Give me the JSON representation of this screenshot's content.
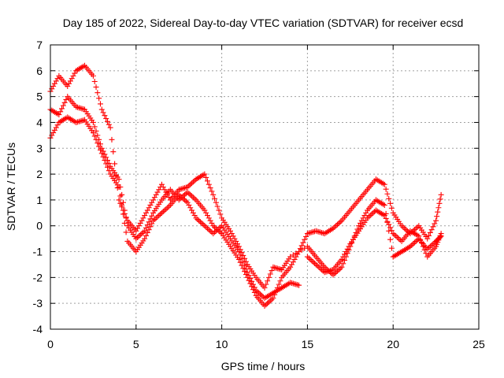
{
  "chart_data": {
    "type": "scatter",
    "title": "Day 185 of 2022, Sidereal Day-to-day VTEC variation (SDTVAR) for receiver ecsd",
    "xlabel": "GPS time / hours",
    "ylabel": "SDTVAR / TECUs",
    "xlim": [
      0,
      25
    ],
    "ylim": [
      -4,
      7
    ],
    "xticks": [
      0,
      5,
      10,
      15,
      20,
      25
    ],
    "yticks": [
      -4,
      -3,
      -2,
      -1,
      0,
      1,
      2,
      3,
      4,
      5,
      6,
      7
    ],
    "xtick_labels": [
      "0",
      "5",
      "10",
      "15",
      "20",
      "25"
    ],
    "ytick_labels": [
      "-4",
      "-3",
      "-2",
      "-1",
      "0",
      "1",
      "2",
      "3",
      "4",
      "5",
      "6",
      "7"
    ],
    "grid": true,
    "marker": "plus",
    "color": "#ff0000",
    "series": [
      {
        "points": [
          [
            0,
            3.4
          ],
          [
            0.5,
            4.0
          ],
          [
            1.0,
            4.2
          ],
          [
            1.5,
            4.0
          ],
          [
            2.0,
            4.1
          ],
          [
            2.5,
            3.6
          ],
          [
            3.0,
            2.8
          ],
          [
            3.5,
            2.0
          ],
          [
            4.0,
            1.5
          ],
          [
            4.5,
            -0.6
          ],
          [
            5.0,
            -1.0
          ],
          [
            5.5,
            -0.5
          ],
          [
            6.0,
            0.2
          ],
          [
            6.5,
            0.5
          ],
          [
            7.0,
            0.8
          ],
          [
            7.5,
            1.2
          ],
          [
            8.0,
            0.9
          ],
          [
            8.5,
            0.3
          ],
          [
            9.0,
            0.0
          ],
          [
            9.5,
            -0.3
          ],
          [
            10.0,
            0.0
          ],
          [
            10.5,
            -0.5
          ],
          [
            11.0,
            -1.0
          ],
          [
            11.5,
            -1.8
          ],
          [
            12.0,
            -2.5
          ],
          [
            12.5,
            -2.8
          ],
          [
            13.0,
            -2.6
          ],
          [
            13.5,
            -2.4
          ],
          [
            14.0,
            -2.2
          ],
          [
            14.5,
            -2.3
          ]
        ]
      },
      {
        "points": [
          [
            0,
            4.5
          ],
          [
            0.5,
            4.3
          ],
          [
            1.0,
            5.0
          ],
          [
            1.5,
            4.6
          ],
          [
            2.0,
            4.5
          ],
          [
            2.5,
            4.0
          ],
          [
            3.0,
            3.0
          ],
          [
            3.5,
            2.3
          ],
          [
            4.0,
            1.8
          ],
          [
            4.5,
            0.0
          ],
          [
            5.0,
            -0.5
          ],
          [
            5.5,
            -0.2
          ],
          [
            6.0,
            0.5
          ],
          [
            6.5,
            1.0
          ],
          [
            7.0,
            1.4
          ],
          [
            7.5,
            1.0
          ],
          [
            8.0,
            1.3
          ],
          [
            8.5,
            1.0
          ],
          [
            9.0,
            0.6
          ],
          [
            9.5,
            0.0
          ],
          [
            10.0,
            -0.3
          ],
          [
            10.5,
            -0.8
          ],
          [
            11.0,
            -1.3
          ],
          [
            11.5,
            -2.0
          ],
          [
            12.0,
            -2.7
          ],
          [
            12.5,
            -3.1
          ],
          [
            13.0,
            -2.8
          ],
          [
            13.5,
            -2.0
          ],
          [
            14.0,
            -1.6
          ],
          [
            14.5,
            -1.0
          ],
          [
            15.0,
            -0.3
          ],
          [
            15.5,
            -0.2
          ],
          [
            16.0,
            -0.3
          ],
          [
            16.5,
            -0.1
          ],
          [
            17.0,
            0.2
          ],
          [
            17.5,
            0.6
          ],
          [
            18.0,
            1.0
          ],
          [
            18.5,
            1.4
          ],
          [
            19.0,
            1.8
          ],
          [
            19.5,
            1.6
          ],
          [
            20.0,
            0.5
          ],
          [
            20.5,
            0.0
          ],
          [
            21.0,
            -0.3
          ],
          [
            21.5,
            0.0
          ],
          [
            22.0,
            -0.5
          ],
          [
            22.5,
            0.2
          ],
          [
            22.8,
            1.2
          ]
        ]
      },
      {
        "points": [
          [
            0,
            5.2
          ],
          [
            0.5,
            5.8
          ],
          [
            1.0,
            5.4
          ],
          [
            1.5,
            6.0
          ],
          [
            2.0,
            6.2
          ],
          [
            2.5,
            5.8
          ],
          [
            3.0,
            4.5
          ],
          [
            3.5,
            3.8
          ],
          [
            4.0,
            1.0
          ],
          [
            4.5,
            0.2
          ],
          [
            5.0,
            -0.2
          ],
          [
            5.5,
            0.4
          ],
          [
            6.0,
            1.0
          ],
          [
            6.5,
            1.6
          ],
          [
            7.0,
            1.0
          ],
          [
            7.5,
            1.4
          ],
          [
            8.0,
            1.5
          ],
          [
            8.5,
            1.8
          ],
          [
            9.0,
            2.0
          ],
          [
            9.5,
            1.2
          ],
          [
            10.0,
            0.3
          ],
          [
            10.5,
            -0.2
          ],
          [
            11.0,
            -0.8
          ],
          [
            11.5,
            -1.5
          ],
          [
            12.0,
            -2.0
          ],
          [
            12.5,
            -2.4
          ],
          [
            13.0,
            -1.6
          ],
          [
            13.5,
            -1.7
          ],
          [
            14.0,
            -1.2
          ],
          [
            15.0,
            -0.8
          ],
          [
            15.5,
            -1.2
          ],
          [
            16.0,
            -1.6
          ],
          [
            16.5,
            -1.9
          ],
          [
            17.0,
            -1.6
          ],
          [
            17.5,
            -0.8
          ],
          [
            18.0,
            0.0
          ],
          [
            18.5,
            0.6
          ],
          [
            19.0,
            1.0
          ],
          [
            19.5,
            0.8
          ],
          [
            20.0,
            -1.2
          ],
          [
            20.5,
            -1.0
          ],
          [
            21.0,
            -0.8
          ],
          [
            21.5,
            -0.5
          ],
          [
            22.0,
            -0.9
          ],
          [
            22.5,
            -0.6
          ],
          [
            22.8,
            -0.4
          ]
        ]
      },
      {
        "points": [
          [
            15.0,
            -1.2
          ],
          [
            15.5,
            -1.5
          ],
          [
            16.0,
            -1.8
          ],
          [
            16.5,
            -1.7
          ],
          [
            17.0,
            -1.3
          ],
          [
            17.5,
            -0.7
          ],
          [
            18.0,
            -0.2
          ],
          [
            18.5,
            0.3
          ],
          [
            19.0,
            0.6
          ],
          [
            19.5,
            0.4
          ],
          [
            20.0,
            -0.3
          ],
          [
            20.5,
            -0.6
          ],
          [
            21.0,
            -0.2
          ],
          [
            21.5,
            -0.4
          ],
          [
            22.0,
            -1.2
          ],
          [
            22.5,
            -0.8
          ],
          [
            22.8,
            -0.3
          ]
        ]
      }
    ]
  }
}
